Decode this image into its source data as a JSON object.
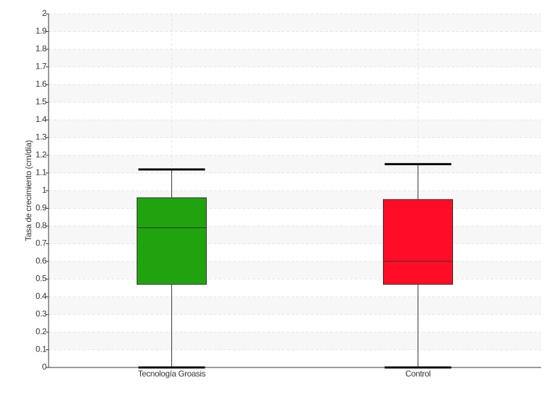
{
  "chart_data": {
    "type": "box",
    "y_label": "Tasa de crecimiento (cm/día)",
    "categories": [
      "Tecnología Groasis",
      "Control"
    ],
    "colors": [
      "#21a30f",
      "#ff0c27"
    ],
    "boxes": [
      {
        "min": 0,
        "q1": 0.47,
        "median": 0.79,
        "q3": 0.96,
        "max": 1.12
      },
      {
        "min": 0,
        "q1": 0.47,
        "median": 0.6,
        "q3": 0.95,
        "max": 1.15
      }
    ],
    "ylim": [
      0,
      2
    ],
    "yticks": [
      0,
      0.1,
      0.2,
      0.3,
      0.4,
      0.5,
      0.6,
      0.7,
      0.8,
      0.9,
      1,
      1.1,
      1.2,
      1.3,
      1.4,
      1.5,
      1.6,
      1.7,
      1.8,
      1.9,
      2
    ],
    "grid": true
  }
}
